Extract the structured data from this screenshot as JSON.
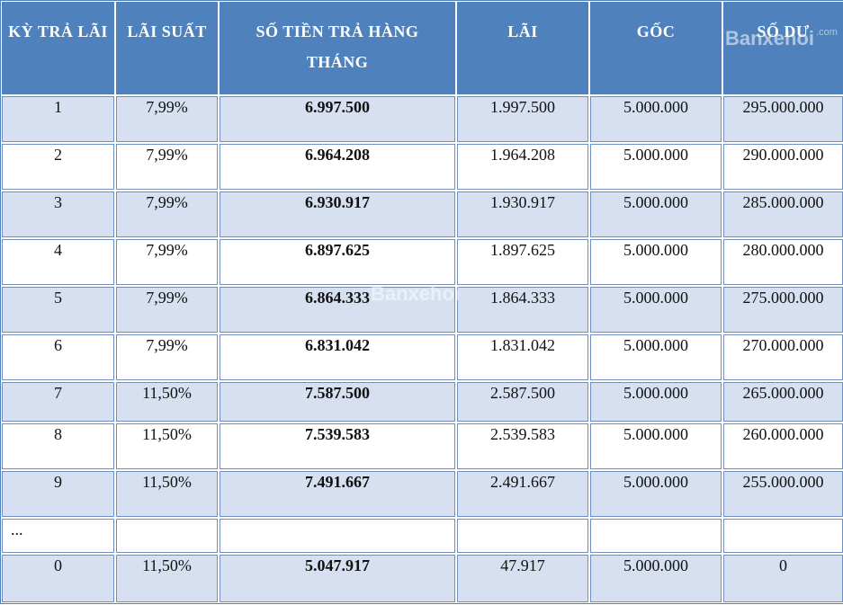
{
  "headers": [
    "KỲ TRẢ LÃI",
    "LÃI SUẤT",
    "SỐ TIỀN TRẢ HÀNG THÁNG",
    "LÃI",
    "GỐC",
    "SỐ DƯ"
  ],
  "rows": [
    {
      "period": "1",
      "rate": "7,99%",
      "payment": "6.997.500",
      "interest": "1.997.500",
      "principal": "5.000.000",
      "balance": "295.000.000"
    },
    {
      "period": "2",
      "rate": "7,99%",
      "payment": "6.964.208",
      "interest": "1.964.208",
      "principal": "5.000.000",
      "balance": "290.000.000"
    },
    {
      "period": "3",
      "rate": "7,99%",
      "payment": "6.930.917",
      "interest": "1.930.917",
      "principal": "5.000.000",
      "balance": "285.000.000"
    },
    {
      "period": "4",
      "rate": "7,99%",
      "payment": "6.897.625",
      "interest": "1.897.625",
      "principal": "5.000.000",
      "balance": "280.000.000"
    },
    {
      "period": "5",
      "rate": "7,99%",
      "payment": "6.864.333",
      "interest": "1.864.333",
      "principal": "5.000.000",
      "balance": "275.000.000"
    },
    {
      "period": "6",
      "rate": "7,99%",
      "payment": "6.831.042",
      "interest": "1.831.042",
      "principal": "5.000.000",
      "balance": "270.000.000"
    },
    {
      "period": "7",
      "rate": "11,50%",
      "payment": "7.587.500",
      "interest": "2.587.500",
      "principal": "5.000.000",
      "balance": "265.000.000"
    },
    {
      "period": "8",
      "rate": "11,50%",
      "payment": "7.539.583",
      "interest": "2.539.583",
      "principal": "5.000.000",
      "balance": "260.000.000"
    },
    {
      "period": "9",
      "rate": "11,50%",
      "payment": "7.491.667",
      "interest": "2.491.667",
      "principal": "5.000.000",
      "balance": "255.000.000"
    }
  ],
  "ellipsis": "...",
  "last_row": {
    "period": "0",
    "rate": "11,50%",
    "payment": "5.047.917",
    "interest": "47.917",
    "principal": "5.000.000",
    "balance": "0"
  },
  "watermark": {
    "text": "Banxehoi",
    "suffix": ".com"
  },
  "colors": {
    "header_bg": "#4f81bd",
    "row_alt_bg": "#d6e0f0",
    "row_bg": "#ffffff",
    "border": "#6e8fc0"
  }
}
